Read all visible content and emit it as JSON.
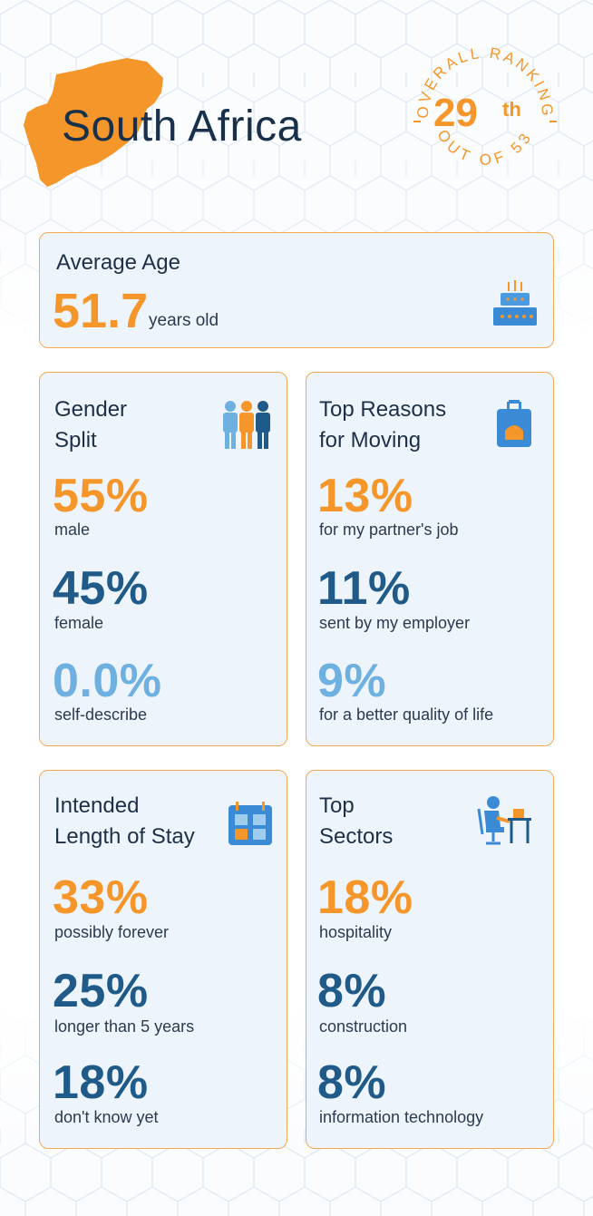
{
  "header": {
    "country": "South Africa",
    "ranking_label_top": "OVERALL RANKING",
    "rank_number": "29",
    "rank_suffix": "th",
    "ranking_label_bottom": "OUT OF 53"
  },
  "average_age": {
    "title": "Average Age",
    "value": "51.7",
    "unit": "years old"
  },
  "gender_split": {
    "title_line1": "Gender",
    "title_line2": "Split",
    "stats": [
      {
        "value": "55%",
        "label": "male"
      },
      {
        "value": "45%",
        "label": "female"
      },
      {
        "value": "0.0%",
        "label": "self-describe"
      }
    ]
  },
  "reasons": {
    "title_line1": "Top Reasons",
    "title_line2": "for Moving",
    "stats": [
      {
        "value": "13%",
        "label": "for my partner's job"
      },
      {
        "value": "11%",
        "label": "sent by my employer"
      },
      {
        "value": "9%",
        "label": "for a better quality of life"
      }
    ]
  },
  "length_of_stay": {
    "title_line1": "Intended",
    "title_line2": "Length of Stay",
    "stats": [
      {
        "value": "33%",
        "label": "possibly forever"
      },
      {
        "value": "25%",
        "label": "longer than 5 years"
      },
      {
        "value": "18%",
        "label": "don't know yet"
      }
    ]
  },
  "sectors": {
    "title_line1": "Top",
    "title_line2": "Sectors",
    "stats": [
      {
        "value": "18%",
        "label": "hospitality"
      },
      {
        "value": "8%",
        "label": "construction"
      },
      {
        "value": "8%",
        "label": "information technology"
      }
    ]
  },
  "icons": {
    "age": "birthday-cake-icon",
    "gender": "people-icon",
    "reasons": "suitcase-icon",
    "stay": "calendar-icon",
    "sectors": "person-at-desk-icon"
  },
  "colors": {
    "accent": "#f5962a",
    "primary": "#1f5a88",
    "light": "#6eb0e0",
    "text": "#1d3047",
    "card_bg": "#eef4fb",
    "card_border": "#f4a94f"
  }
}
